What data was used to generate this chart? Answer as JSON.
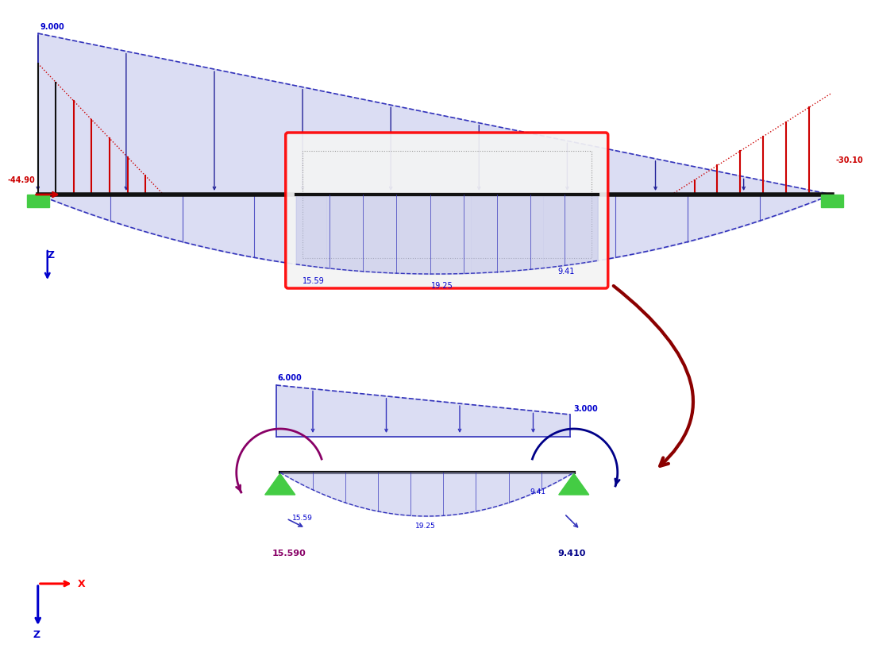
{
  "bg_color": "#ffffff",
  "beam_color": "#111111",
  "fill_color": "#b8bce8",
  "fill_alpha": 0.5,
  "dashed_blue": "#3333bb",
  "red_color": "#cc0000",
  "green_support": "#44cc44",
  "text_blue": "#0000cc",
  "text_red": "#cc0000",
  "text_purple": "#880066",
  "text_darkblue": "#000088",
  "label_9000": "9.000",
  "label_4490": "-44.90",
  "label_3010": "-30.10",
  "label_1559_inset": "15.59",
  "label_1925_inset": "19.25",
  "label_941_inset": "9.41",
  "label_6000": "6.000",
  "label_3000": "3.000",
  "label_1559_sm": "15.59",
  "label_1925_sm": "19.25",
  "label_941_sm": "9.41",
  "label_15590": "15.590",
  "label_9410": "9.410"
}
